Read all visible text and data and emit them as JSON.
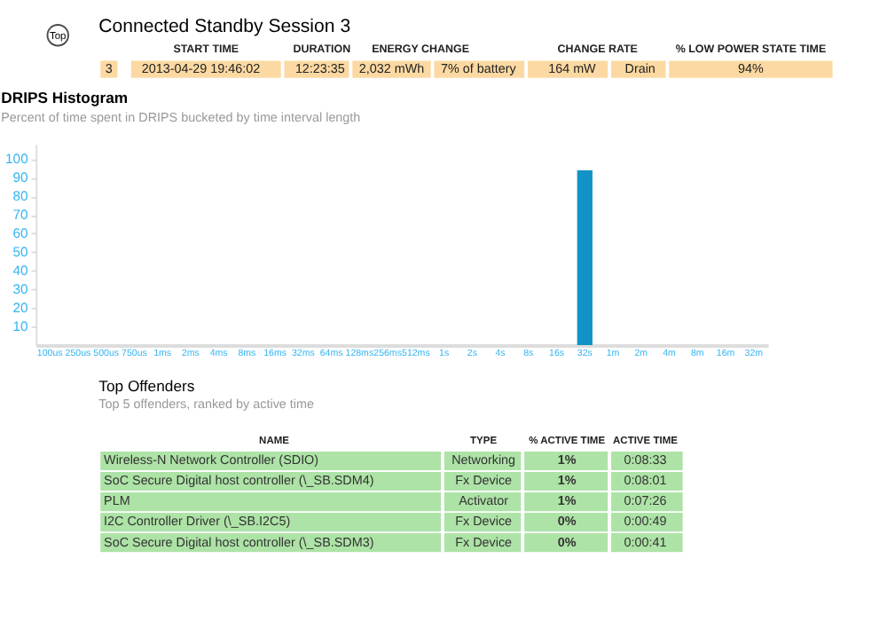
{
  "chart_data": [
    {
      "type": "other",
      "title": "Connected Standby Session 3",
      "annotations": [
        "Top",
        "START TIME",
        "DURATION",
        "ENERGY CHANGE",
        "CHANGE RATE",
        "% LOW POWER STATE TIME",
        "3",
        "2013-04-29  19:46:02",
        "12:23:35",
        "2,032 mWh",
        "7% of battery",
        "164 mW",
        "Drain",
        "94%"
      ]
    },
    {
      "type": "bar",
      "title": "DRIPS Histogram",
      "subtitle": "Percent of time spent in DRIPS bucketed by time interval length",
      "categories": [
        "100us",
        "250us",
        "500us",
        "750us",
        "1ms",
        "2ms",
        "4ms",
        "8ms",
        "16ms",
        "32ms",
        "64ms",
        "128ms",
        "256ms",
        "512ms",
        "1s",
        "2s",
        "4s",
        "8s",
        "16s",
        "32s",
        "1m",
        "2m",
        "4m",
        "8m",
        "16m",
        "32m"
      ],
      "values": [
        0,
        0,
        0,
        0,
        0,
        0,
        0,
        0,
        0,
        0,
        0,
        0,
        0,
        0,
        0,
        0,
        0,
        0,
        0,
        94,
        0,
        0,
        0,
        0,
        0,
        0
      ],
      "color": "#1193c6",
      "ylim": [
        0,
        108
      ],
      "yticks": [
        10,
        20,
        30,
        40,
        50,
        60,
        70,
        80,
        90,
        100
      ],
      "grid": false
    },
    {
      "type": "other",
      "title": "Top Offenders",
      "subtitle": "Top 5 offenders, ranked by active time",
      "annotations": [
        "NAME",
        "TYPE",
        "% ACTIVE TIME",
        "ACTIVE TIME",
        "Wireless-N Network Controller (SDIO)",
        "Networking",
        "1%",
        "0:08:33",
        "SoC Secure Digital host controller (\\_SB.SDM4)",
        "Fx Device",
        "1%",
        "0:08:01",
        "PLM",
        "Activator",
        "1%",
        "0:07:26",
        "I2C Controller Driver (\\_SB.I2C5)",
        "Fx Device",
        "0%",
        "0:00:49",
        "SoC Secure Digital host controller (\\_SB.SDM3)",
        "Fx Device",
        "0%",
        "0:00:41"
      ]
    }
  ]
}
